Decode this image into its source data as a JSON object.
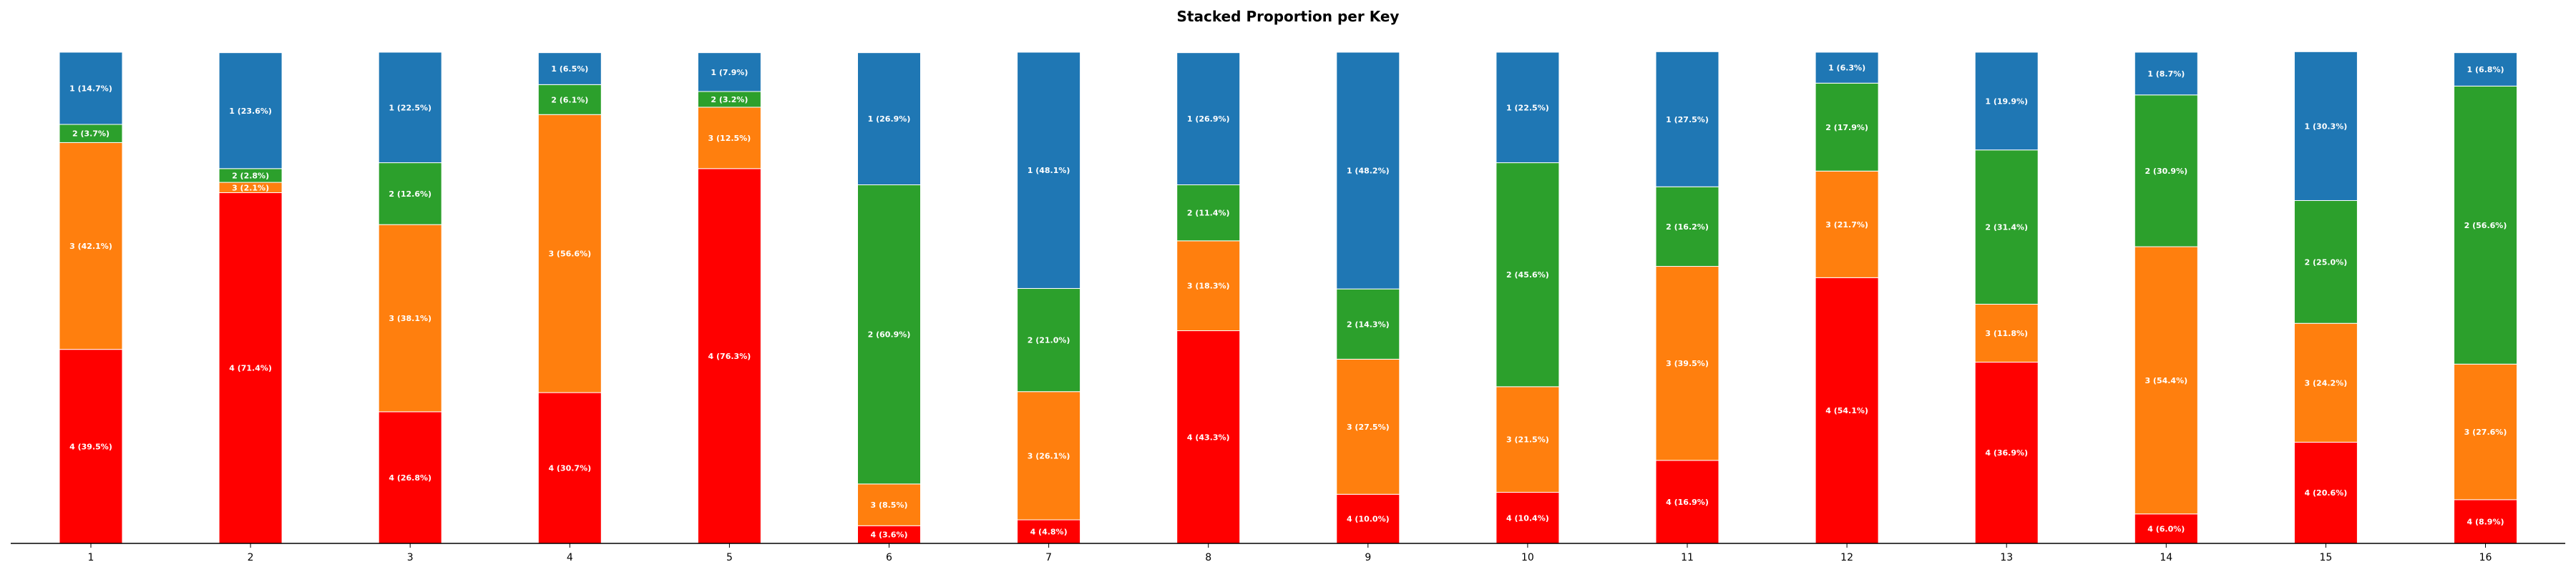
{
  "chart_data": {
    "type": "bar",
    "stacked": true,
    "title": "Stacked Proportion per Key",
    "xlabel": "",
    "ylabel": "",
    "ylim": [
      0,
      100
    ],
    "grid": false,
    "categories": [
      "1",
      "2",
      "3",
      "4",
      "5",
      "6",
      "7",
      "8",
      "9",
      "10",
      "11",
      "12",
      "13",
      "14",
      "15",
      "16"
    ],
    "series": [
      {
        "name": "4",
        "color": "#ff0000",
        "values": [
          39.5,
          71.4,
          26.8,
          30.7,
          76.3,
          3.6,
          4.8,
          43.3,
          10.0,
          10.4,
          16.9,
          54.1,
          36.9,
          6.0,
          20.6,
          8.9
        ]
      },
      {
        "name": "3",
        "color": "#ff7f0e",
        "values": [
          42.1,
          2.1,
          38.1,
          56.6,
          12.5,
          8.5,
          26.1,
          18.3,
          27.5,
          21.5,
          39.5,
          21.7,
          11.8,
          54.4,
          24.2,
          27.6
        ]
      },
      {
        "name": "2",
        "color": "#2ca02c",
        "values": [
          3.7,
          2.8,
          12.6,
          6.1,
          3.2,
          60.9,
          21.0,
          11.4,
          14.3,
          45.6,
          16.2,
          17.9,
          31.4,
          30.9,
          25.0,
          56.6
        ]
      },
      {
        "name": "1",
        "color": "#1f77b4",
        "values": [
          14.7,
          23.6,
          22.5,
          6.5,
          7.9,
          26.9,
          48.1,
          26.9,
          48.2,
          22.5,
          27.5,
          6.3,
          19.9,
          8.7,
          30.3,
          6.8
        ]
      }
    ],
    "labels": {
      "4": [
        "4 (39.5%)",
        "4 (71.4%)",
        "4 (26.8%)",
        "4 (30.7%)",
        "4 (76.3%)",
        "4 (3.6%)",
        "4 (4.8%)",
        "4 (43.3%)",
        "4 (10.0%)",
        "4 (10.4%)",
        "4 (16.9%)",
        "4 (54.1%)",
        "4 (36.9%)",
        "4 (6.0%)",
        "4 (20.6%)",
        "4 (8.9%)"
      ],
      "3": [
        "3 (42.1%)",
        "3 (2.1%)",
        "3 (38.1%)",
        "3 (56.6%)",
        "3 (12.5%)",
        "3 (8.5%)",
        "3 (26.1%)",
        "3 (18.3%)",
        "3 (27.5%)",
        "3 (21.5%)",
        "3 (39.5%)",
        "3 (21.7%)",
        "3 (11.8%)",
        "3 (54.4%)",
        "3 (24.2%)",
        "3 (27.6%)"
      ],
      "2": [
        "2 (3.7%)",
        "2 (2.8%)",
        "2 (12.6%)",
        "2 (6.1%)",
        "2 (3.2%)",
        "2 (60.9%)",
        "2 (21.0%)",
        "2 (11.4%)",
        "2 (14.3%)",
        "2 (45.6%)",
        "2 (16.2%)",
        "2 (17.9%)",
        "2 (31.4%)",
        "2 (30.9%)",
        "2 (25.0%)",
        "2 (56.6%)"
      ],
      "1": [
        "1 (14.7%)",
        "1 (23.6%)",
        "1 (22.5%)",
        "1 (6.5%)",
        "1 (7.9%)",
        "1 (26.9%)",
        "1 (48.1%)",
        "1 (26.9%)",
        "1 (48.2%)",
        "1 (22.5%)",
        "1 (27.5%)",
        "1 (6.3%)",
        "1 (19.9%)",
        "1 (8.7%)",
        "1 (30.3%)",
        "1 (6.8%)"
      ]
    }
  }
}
